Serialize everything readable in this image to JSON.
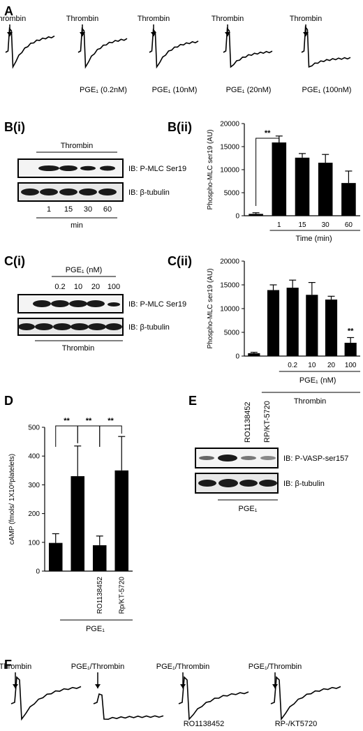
{
  "panels": {
    "A": "A",
    "Bi": "B(i)",
    "Bii": "B(ii)",
    "Ci": "C(i)",
    "Cii": "C(ii)",
    "D": "D",
    "E": "E",
    "F": "F"
  },
  "panelA": {
    "traces": [
      {
        "top": "Thrombin",
        "bottom": ""
      },
      {
        "top": "Thrombin",
        "bottom": "PGE₁ (0.2nM)"
      },
      {
        "top": "Thrombin",
        "bottom": "PGE₁ (10nM)"
      },
      {
        "top": "Thrombin",
        "bottom": "PGE₁ (20nM)"
      },
      {
        "top": "Thrombin",
        "bottom": "PGE₁ (100nM)"
      }
    ]
  },
  "panelBi": {
    "header": "Thrombin",
    "blot1": "IB: P-MLC Ser19",
    "blot2": "IB: β-tubulin",
    "lanes": [
      "1",
      "15",
      "30",
      "60"
    ],
    "unit": "min"
  },
  "panelCi": {
    "header": "PGE₁ (nM)",
    "lanes": [
      "0.2",
      "10",
      "20",
      "100"
    ],
    "blot1": "IB: P-MLC Ser19",
    "blot2": "IB: β-tubulin",
    "footer": "Thrombin"
  },
  "panelE": {
    "lanes": [
      "RO1138452",
      "RP/KT-5720"
    ],
    "blot1": "IB: P-VASP-ser157",
    "blot2": "IB: β-tubulin",
    "footer": "PGE₁"
  },
  "panelF": {
    "traces": [
      {
        "top": "Thrombin",
        "bottom": ""
      },
      {
        "top": "PGE₁/Thrombin",
        "bottom": ""
      },
      {
        "top": "PGE₁/Thrombin",
        "bottom": "RO1138452"
      },
      {
        "top": "PGE₁/Thrombin",
        "bottom": "RP-/KT5720"
      }
    ]
  },
  "chart_data": [
    {
      "id": "Bii",
      "type": "bar",
      "ylabel": "Phospho-MLC ser19 (AU)",
      "ylim": [
        0,
        20000
      ],
      "yticks": [
        0,
        5000,
        10000,
        15000,
        20000
      ],
      "categories": [
        "",
        "1",
        "15",
        "30",
        "60"
      ],
      "values": [
        400,
        15900,
        12600,
        11500,
        7100
      ],
      "errors": [
        250,
        1400,
        900,
        1800,
        2600
      ],
      "xlabel": "Time (min)",
      "significance": "**"
    },
    {
      "id": "Cii",
      "type": "bar",
      "ylabel": "Phospho-MLC ser19 (AU)",
      "ylim": [
        0,
        20000
      ],
      "yticks": [
        0,
        5000,
        10000,
        15000,
        20000
      ],
      "categories": [
        "",
        "",
        "0.2",
        "10",
        "20",
        "100"
      ],
      "values": [
        600,
        13900,
        14400,
        12900,
        11900,
        2800
      ],
      "errors": [
        200,
        1100,
        1600,
        2600,
        700,
        1100
      ],
      "xlabel": "PGE₁ (nM)",
      "group_label": "Thrombin",
      "significance": "**"
    },
    {
      "id": "D",
      "type": "bar",
      "ylabel": "cAMP (fmols/ 1X10⁸platelets)",
      "ylim": [
        0,
        500
      ],
      "yticks": [
        0,
        100,
        200,
        300,
        400,
        500
      ],
      "categories": [
        "",
        "",
        "RO1138452",
        "Rp/KT-5720"
      ],
      "values": [
        98,
        330,
        90,
        350
      ],
      "errors": [
        32,
        105,
        32,
        118
      ],
      "group_label": "PGE₁",
      "significance": [
        "**",
        "**",
        "**"
      ]
    }
  ]
}
